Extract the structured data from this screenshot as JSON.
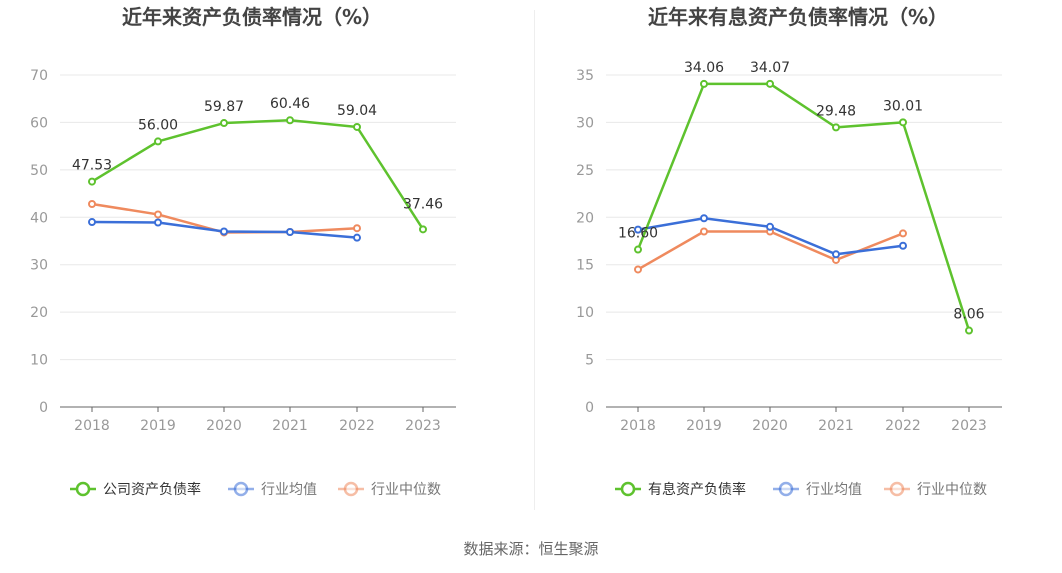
{
  "colors": {
    "green": "#5ec22e",
    "blue": "#3b6fd8",
    "orange": "#ef8a5e",
    "axis_text": "#999999",
    "title": "#444444",
    "label": "#333333",
    "grid": "#e8e8e8",
    "axis_line": "#666666"
  },
  "source": "数据来源：恒生聚源",
  "chart_data": [
    {
      "type": "line",
      "title": "近年来资产负债率情况（%）",
      "categories": [
        "2018",
        "2019",
        "2020",
        "2021",
        "2022",
        "2023"
      ],
      "ylim": [
        0,
        70
      ],
      "yticks": [
        "0",
        "10",
        "20",
        "30",
        "40",
        "50",
        "60",
        "70"
      ],
      "grid": true,
      "legend_position": "bottom",
      "series": [
        {
          "name": "公司资产负债率",
          "color": "#5ec22e",
          "values": [
            47.53,
            56.0,
            59.87,
            60.46,
            59.04,
            37.46
          ],
          "labels": [
            "47.53",
            "56.00",
            "59.87",
            "60.46",
            "59.04",
            "37.46"
          ]
        },
        {
          "name": "行业均值",
          "color": "#3b6fd8",
          "values": [
            39.0,
            38.9,
            37.0,
            36.9,
            35.7,
            null
          ]
        },
        {
          "name": "行业中位数",
          "color": "#ef8a5e",
          "values": [
            42.8,
            40.6,
            36.8,
            36.9,
            37.7,
            null
          ]
        }
      ]
    },
    {
      "type": "line",
      "title": "近年来有息资产负债率情况（%）",
      "categories": [
        "2018",
        "2019",
        "2020",
        "2021",
        "2022",
        "2023"
      ],
      "ylim": [
        0,
        35
      ],
      "yticks": [
        "0",
        "5",
        "10",
        "15",
        "20",
        "25",
        "30",
        "35"
      ],
      "grid": true,
      "legend_position": "bottom",
      "series": [
        {
          "name": "有息资产负债率",
          "color": "#5ec22e",
          "values": [
            16.6,
            34.06,
            34.07,
            29.48,
            30.01,
            8.06
          ],
          "labels": [
            "16.60",
            "34.06",
            "34.07",
            "29.48",
            "30.01",
            "8.06"
          ]
        },
        {
          "name": "行业均值",
          "color": "#3b6fd8",
          "values": [
            18.7,
            19.9,
            19.0,
            16.1,
            17.0,
            null
          ]
        },
        {
          "name": "行业中位数",
          "color": "#ef8a5e",
          "values": [
            14.5,
            18.5,
            18.5,
            15.5,
            18.3,
            null
          ]
        }
      ]
    }
  ]
}
